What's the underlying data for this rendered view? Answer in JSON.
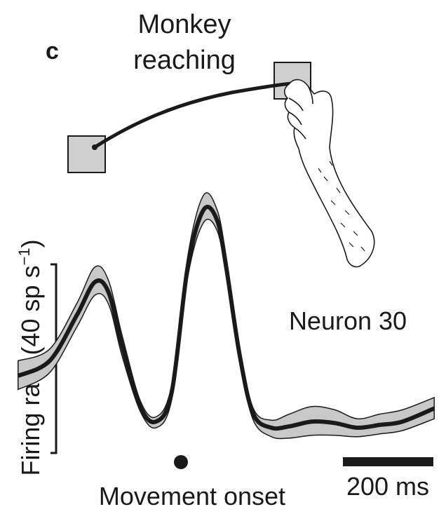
{
  "panel_letter": "c",
  "title_lines": [
    "Monkey",
    "reaching"
  ],
  "neuron_label": "Neuron 30",
  "y_axis_label": "Firing rate (40 sp s",
  "y_axis_label_sup": "−1",
  "y_axis_label_close": ")",
  "event_label": "Movement onset",
  "scale_bar_label": "200 ms",
  "colors": {
    "ink": "#1a1a1a",
    "band_fill": "#c8c8c8",
    "target_fill": "#cfcfcf"
  },
  "chart_data": {
    "type": "line",
    "x_unit": "ms",
    "y_unit": "sp s^-1",
    "scale_bars": {
      "time_ms": 200,
      "rate_sp_per_s": 40
    },
    "movement_onset_ms": 0,
    "series": [
      {
        "x": [
          -360,
          -290,
          -230,
          -190,
          -160,
          -130,
          -90,
          -55,
          -20,
          15,
          50,
          80,
          100,
          130,
          160,
          200,
          240,
          290,
          340,
          390,
          440,
          490,
          560
        ],
        "mean": [
          11.3,
          14.5,
          24.2,
          31.2,
          29.0,
          17.7,
          4.8,
          1.6,
          8.0,
          34.4,
          46.5,
          44.3,
          34.4,
          15.6,
          3.2,
          0.3,
          0.6,
          1.6,
          1.3,
          0.3,
          0.9,
          1.6,
          4.4
        ],
        "lower": [
          8.4,
          12.0,
          21.7,
          28.4,
          26.5,
          15.5,
          3.8,
          0.3,
          6.4,
          32.2,
          43.8,
          42.1,
          32.6,
          14.3,
          1.9,
          -1.6,
          -1.9,
          -1.3,
          -1.3,
          -1.6,
          -1.0,
          -0.3,
          2.2
        ],
        "upper": [
          14.5,
          17.0,
          26.7,
          34.4,
          31.5,
          19.9,
          6.1,
          2.6,
          9.6,
          36.6,
          49.6,
          46.5,
          36.6,
          17.3,
          4.4,
          1.9,
          3.2,
          4.8,
          4.1,
          2.2,
          3.2,
          4.1,
          6.7
        ]
      }
    ]
  }
}
